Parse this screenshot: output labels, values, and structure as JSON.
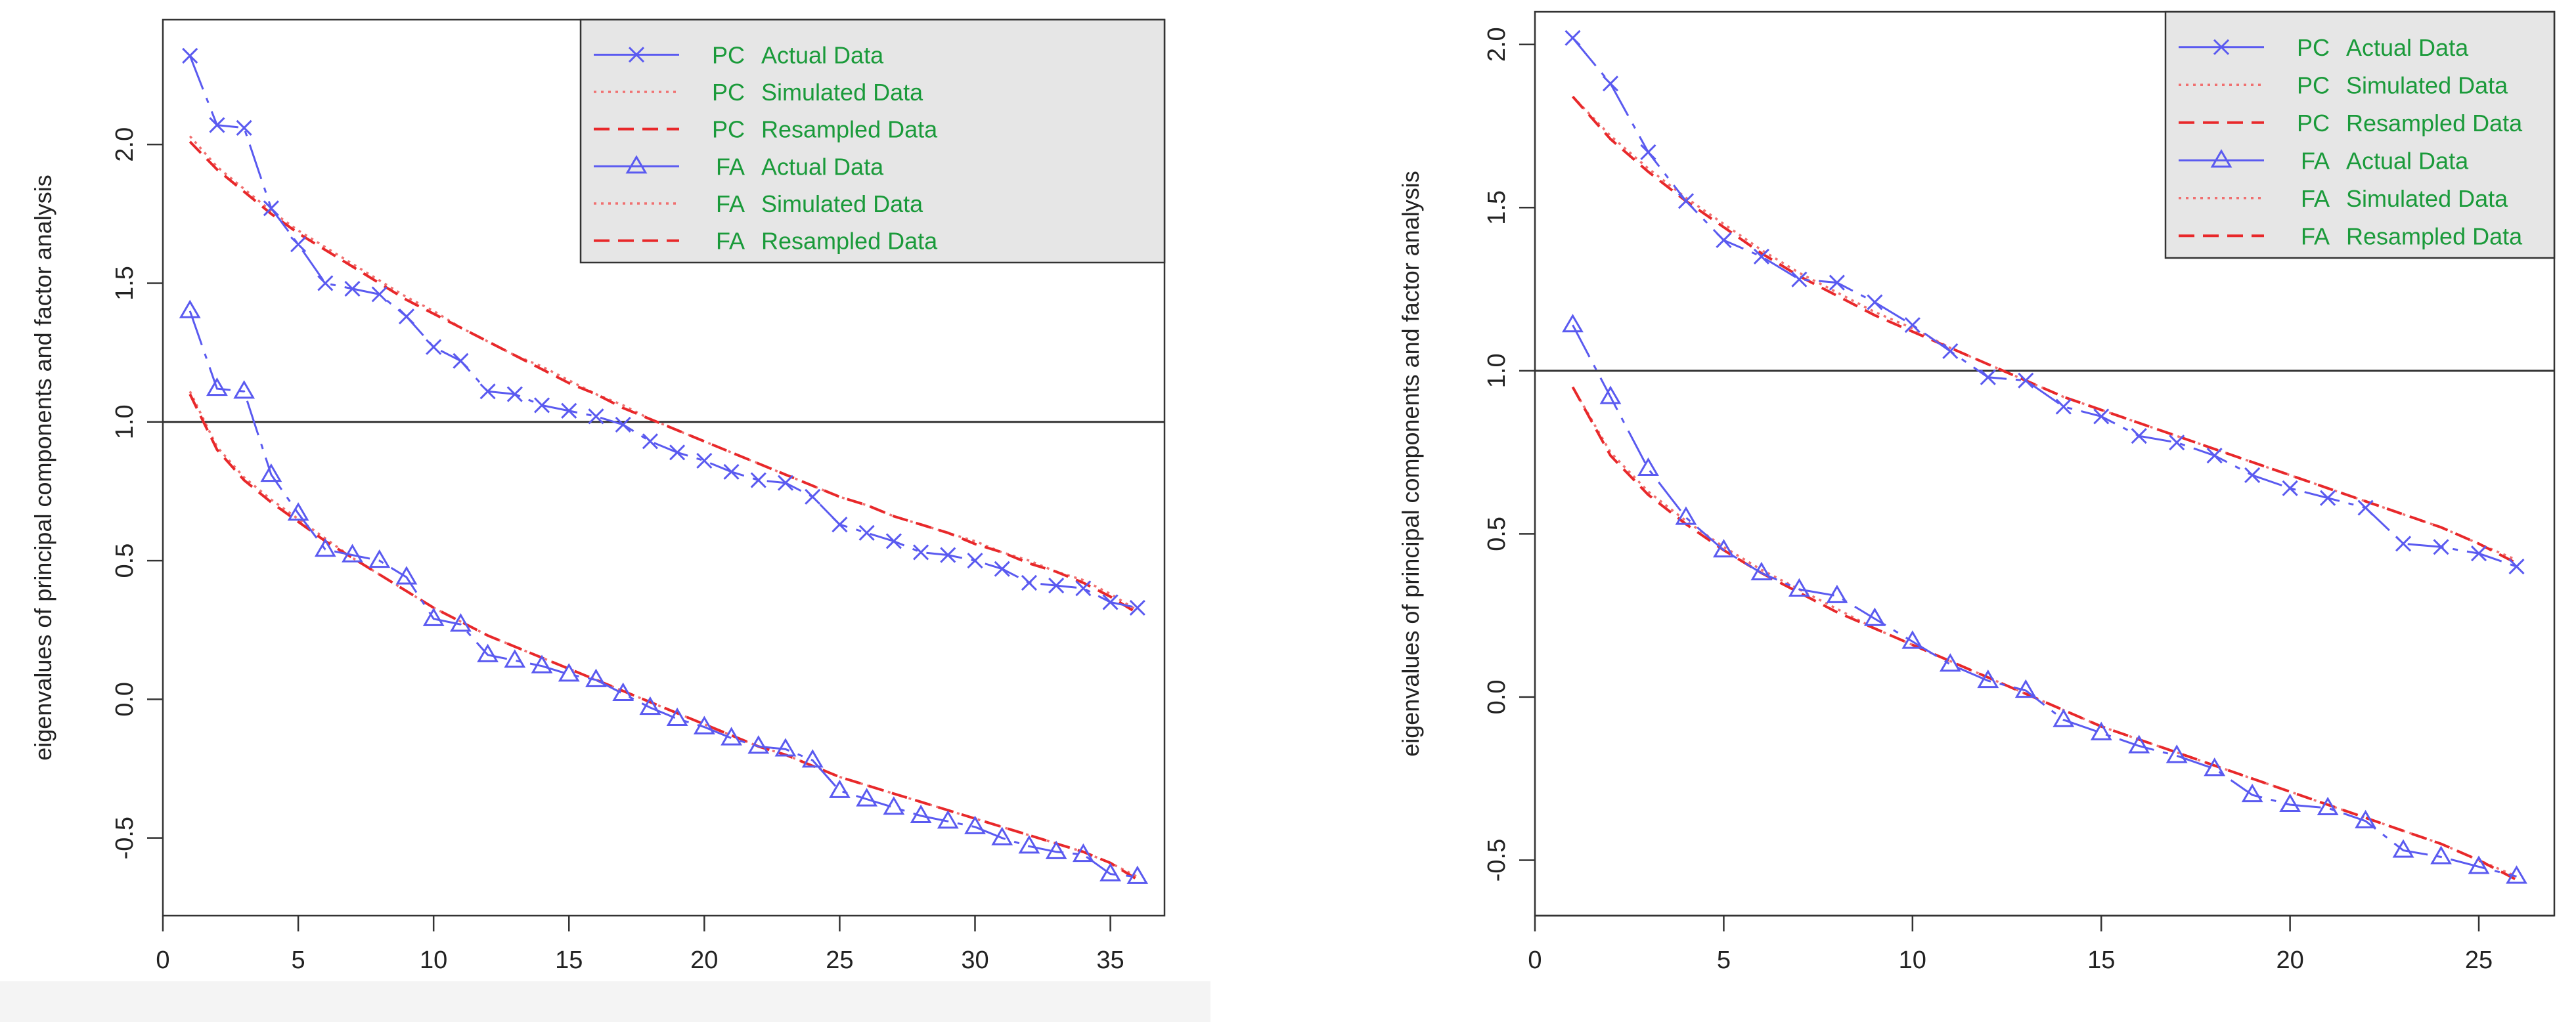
{
  "chart_data": [
    {
      "type": "line",
      "title": "",
      "xlabel": "",
      "ylabel": "eigenvalues of principal components and factor analysis",
      "xlim": [
        0,
        37
      ],
      "ylim": [
        -0.78,
        2.45
      ],
      "x_ticks": [
        0,
        5,
        10,
        15,
        20,
        25,
        30,
        35
      ],
      "y_ticks": [
        -0.5,
        0.0,
        0.5,
        1.0,
        1.5,
        2.0
      ],
      "x_tick_labels": [
        "0",
        "5",
        "10",
        "15",
        "20",
        "25",
        "30",
        "35"
      ],
      "y_tick_labels": [
        "-0.5",
        "0.0",
        "0.5",
        "1.0",
        "1.5",
        "2.0"
      ],
      "reference_line_y": 1.0,
      "legend_position": "top-right",
      "legend": [
        {
          "pc": "PC",
          "label": "Actual Data",
          "style": "actual",
          "marker": "x"
        },
        {
          "pc": "PC",
          "label": "Simulated Data",
          "style": "dotted",
          "marker": ""
        },
        {
          "pc": "PC",
          "label": "Resampled Data",
          "style": "dashed",
          "marker": ""
        },
        {
          "pc": "FA",
          "label": "Actual Data",
          "style": "actual",
          "marker": "triangle"
        },
        {
          "pc": "FA",
          "label": "Simulated Data",
          "style": "dotted",
          "marker": ""
        },
        {
          "pc": "FA",
          "label": "Resampled Data",
          "style": "dashed",
          "marker": ""
        }
      ],
      "x": [
        1,
        2,
        3,
        4,
        5,
        6,
        7,
        8,
        9,
        10,
        11,
        12,
        13,
        14,
        15,
        16,
        17,
        18,
        19,
        20,
        21,
        22,
        23,
        24,
        25,
        26,
        27,
        28,
        29,
        30,
        31,
        32,
        33,
        34,
        35,
        36
      ],
      "series": [
        {
          "name": "PC Actual Data",
          "style": "actual",
          "marker": "x",
          "values": [
            2.32,
            2.07,
            2.06,
            1.77,
            1.64,
            1.5,
            1.48,
            1.46,
            1.38,
            1.27,
            1.22,
            1.11,
            1.1,
            1.06,
            1.04,
            1.02,
            0.99,
            0.93,
            0.89,
            0.86,
            0.82,
            0.79,
            0.78,
            0.73,
            0.63,
            0.6,
            0.57,
            0.53,
            0.52,
            0.5,
            0.47,
            0.42,
            0.41,
            0.4,
            0.35,
            0.33
          ]
        },
        {
          "name": "PC Simulated Data",
          "style": "dotted",
          "marker": "",
          "values": [
            2.03,
            1.92,
            1.84,
            1.76,
            1.69,
            1.63,
            1.57,
            1.51,
            1.45,
            1.4,
            1.34,
            1.29,
            1.24,
            1.2,
            1.15,
            1.1,
            1.06,
            1.01,
            0.97,
            0.93,
            0.89,
            0.85,
            0.81,
            0.77,
            0.73,
            0.7,
            0.66,
            0.63,
            0.6,
            0.57,
            0.53,
            0.5,
            0.46,
            0.43,
            0.38,
            0.32
          ]
        },
        {
          "name": "PC Resampled Data",
          "style": "dashed",
          "marker": "",
          "values": [
            2.01,
            1.91,
            1.83,
            1.75,
            1.68,
            1.62,
            1.56,
            1.5,
            1.44,
            1.39,
            1.34,
            1.29,
            1.24,
            1.19,
            1.14,
            1.1,
            1.05,
            1.01,
            0.97,
            0.93,
            0.89,
            0.85,
            0.81,
            0.77,
            0.73,
            0.7,
            0.66,
            0.63,
            0.6,
            0.56,
            0.53,
            0.49,
            0.46,
            0.42,
            0.37,
            0.31
          ]
        },
        {
          "name": "FA Actual Data",
          "style": "actual",
          "marker": "triangle",
          "values": [
            1.4,
            1.12,
            1.11,
            0.81,
            0.67,
            0.54,
            0.52,
            0.5,
            0.44,
            0.29,
            0.27,
            0.16,
            0.14,
            0.12,
            0.09,
            0.07,
            0.02,
            -0.03,
            -0.07,
            -0.1,
            -0.14,
            -0.17,
            -0.18,
            -0.22,
            -0.33,
            -0.36,
            -0.39,
            -0.42,
            -0.44,
            -0.46,
            -0.5,
            -0.53,
            -0.55,
            -0.56,
            -0.63,
            -0.64
          ]
        },
        {
          "name": "FA Simulated Data",
          "style": "dotted",
          "marker": "",
          "values": [
            1.11,
            0.91,
            0.8,
            0.72,
            0.65,
            0.58,
            0.51,
            0.45,
            0.39,
            0.33,
            0.28,
            0.23,
            0.19,
            0.15,
            0.11,
            0.07,
            0.03,
            -0.01,
            -0.05,
            -0.09,
            -0.13,
            -0.17,
            -0.2,
            -0.24,
            -0.28,
            -0.31,
            -0.34,
            -0.37,
            -0.4,
            -0.43,
            -0.46,
            -0.49,
            -0.52,
            -0.55,
            -0.59,
            -0.64
          ]
        },
        {
          "name": "FA Resampled Data",
          "style": "dashed",
          "marker": "",
          "values": [
            1.1,
            0.9,
            0.79,
            0.71,
            0.64,
            0.57,
            0.51,
            0.45,
            0.39,
            0.33,
            0.28,
            0.23,
            0.19,
            0.15,
            0.11,
            0.07,
            0.03,
            -0.01,
            -0.05,
            -0.09,
            -0.13,
            -0.17,
            -0.2,
            -0.24,
            -0.28,
            -0.31,
            -0.34,
            -0.37,
            -0.4,
            -0.43,
            -0.46,
            -0.49,
            -0.52,
            -0.55,
            -0.59,
            -0.65
          ]
        }
      ]
    },
    {
      "type": "line",
      "title": "",
      "xlabel": "",
      "ylabel": "eigenvalues of principal components and factor analysis",
      "xlim": [
        0,
        27
      ],
      "ylim": [
        -0.67,
        2.1
      ],
      "x_ticks": [
        0,
        5,
        10,
        15,
        20,
        25
      ],
      "y_ticks": [
        -0.5,
        0.0,
        0.5,
        1.0,
        1.5,
        2.0
      ],
      "x_tick_labels": [
        "0",
        "5",
        "10",
        "15",
        "20",
        "25"
      ],
      "y_tick_labels": [
        "-0.5",
        "0.0",
        "0.5",
        "1.0",
        "1.5",
        "2.0"
      ],
      "reference_line_y": 1.0,
      "legend_position": "top-right",
      "legend": [
        {
          "pc": "PC",
          "label": "Actual Data",
          "style": "actual",
          "marker": "x"
        },
        {
          "pc": "PC",
          "label": "Simulated Data",
          "style": "dotted",
          "marker": ""
        },
        {
          "pc": "PC",
          "label": "Resampled Data",
          "style": "dashed",
          "marker": ""
        },
        {
          "pc": "FA",
          "label": "Actual Data",
          "style": "actual",
          "marker": "triangle"
        },
        {
          "pc": "FA",
          "label": "Simulated Data",
          "style": "dotted",
          "marker": ""
        },
        {
          "pc": "FA",
          "label": "Resampled Data",
          "style": "dashed",
          "marker": ""
        }
      ],
      "x": [
        1,
        2,
        3,
        4,
        5,
        6,
        7,
        8,
        9,
        10,
        11,
        12,
        13,
        14,
        15,
        16,
        17,
        18,
        19,
        20,
        21,
        22,
        23,
        24,
        25,
        26
      ],
      "series": [
        {
          "name": "PC Actual Data",
          "style": "actual",
          "marker": "x",
          "values": [
            2.02,
            1.88,
            1.67,
            1.52,
            1.4,
            1.35,
            1.28,
            1.27,
            1.21,
            1.14,
            1.06,
            0.98,
            0.97,
            0.89,
            0.86,
            0.8,
            0.78,
            0.74,
            0.68,
            0.64,
            0.61,
            0.58,
            0.47,
            0.46,
            0.44,
            0.4
          ]
        },
        {
          "name": "PC Simulated Data",
          "style": "dotted",
          "marker": "",
          "values": [
            1.84,
            1.72,
            1.62,
            1.53,
            1.45,
            1.37,
            1.3,
            1.24,
            1.18,
            1.13,
            1.07,
            1.02,
            0.97,
            0.92,
            0.88,
            0.84,
            0.8,
            0.76,
            0.72,
            0.68,
            0.64,
            0.6,
            0.56,
            0.52,
            0.47,
            0.42
          ]
        },
        {
          "name": "PC Resampled Data",
          "style": "dashed",
          "marker": "",
          "values": [
            1.84,
            1.71,
            1.61,
            1.52,
            1.44,
            1.36,
            1.29,
            1.23,
            1.17,
            1.12,
            1.07,
            1.02,
            0.97,
            0.92,
            0.88,
            0.84,
            0.8,
            0.76,
            0.72,
            0.68,
            0.64,
            0.6,
            0.56,
            0.52,
            0.47,
            0.41
          ]
        },
        {
          "name": "FA Actual Data",
          "style": "actual",
          "marker": "triangle",
          "values": [
            1.14,
            0.92,
            0.7,
            0.55,
            0.45,
            0.38,
            0.33,
            0.31,
            0.24,
            0.17,
            0.1,
            0.05,
            0.02,
            -0.07,
            -0.11,
            -0.15,
            -0.18,
            -0.22,
            -0.3,
            -0.33,
            -0.34,
            -0.38,
            -0.47,
            -0.49,
            -0.52,
            -0.55
          ]
        },
        {
          "name": "FA Simulated Data",
          "style": "dotted",
          "marker": "",
          "values": [
            0.95,
            0.75,
            0.63,
            0.54,
            0.46,
            0.39,
            0.33,
            0.27,
            0.21,
            0.16,
            0.11,
            0.06,
            0.01,
            -0.04,
            -0.09,
            -0.13,
            -0.17,
            -0.21,
            -0.25,
            -0.29,
            -0.33,
            -0.37,
            -0.41,
            -0.45,
            -0.5,
            -0.55
          ]
        },
        {
          "name": "FA Resampled Data",
          "style": "dashed",
          "marker": "",
          "values": [
            0.95,
            0.74,
            0.62,
            0.53,
            0.45,
            0.38,
            0.32,
            0.26,
            0.21,
            0.16,
            0.11,
            0.06,
            0.01,
            -0.04,
            -0.09,
            -0.13,
            -0.17,
            -0.21,
            -0.25,
            -0.29,
            -0.33,
            -0.37,
            -0.41,
            -0.45,
            -0.5,
            -0.56
          ]
        }
      ]
    }
  ],
  "colors": {
    "actual": "#5a5af0",
    "simulated": "#f07070",
    "resampled": "#e8282a",
    "legend_text": "#1a9a3a",
    "legend_bg": "#e6e6e6",
    "axis": "#333333",
    "text": "#222222"
  }
}
